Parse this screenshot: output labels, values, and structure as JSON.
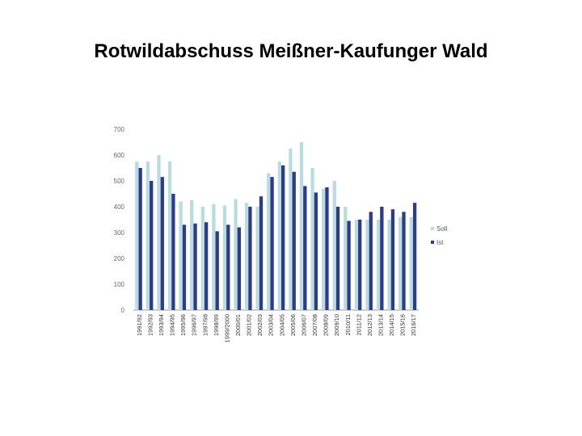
{
  "slide": {
    "title": "Rotwildabschuss Meißner-Kaufunger Wald"
  },
  "chart_data": {
    "type": "bar",
    "categories": [
      "1991/92",
      "1992/93",
      "1993/94",
      "1994/95",
      "1995/96",
      "1996/97",
      "1997/98",
      "1998/99",
      "1999/2000",
      "2000/01",
      "2001/02",
      "2002/03",
      "2003/04",
      "2004/05",
      "2005/06",
      "2006/07",
      "2007/08",
      "2008/09",
      "2009/10",
      "2010/11",
      "2011/12",
      "2012/13",
      "2013/14",
      "2014/15",
      "2015/16",
      "2016/17"
    ],
    "series": [
      {
        "name": "Soll",
        "color": "#b7dde3",
        "values": [
          575,
          575,
          600,
          575,
          420,
          425,
          400,
          410,
          405,
          430,
          415,
          400,
          530,
          575,
          625,
          650,
          550,
          470,
          500,
          400,
          350,
          350,
          350,
          350,
          360,
          360
        ]
      },
      {
        "name": "Ist",
        "color": "#2e3a8c",
        "values": [
          550,
          500,
          515,
          450,
          330,
          335,
          340,
          305,
          330,
          320,
          400,
          440,
          515,
          560,
          535,
          480,
          455,
          475,
          400,
          345,
          350,
          380,
          400,
          390,
          380,
          415
        ]
      }
    ],
    "ylim": [
      0,
      700
    ],
    "yticks": [
      0,
      100,
      200,
      300,
      400,
      500,
      600,
      700
    ],
    "grid": false,
    "legend": "right"
  }
}
